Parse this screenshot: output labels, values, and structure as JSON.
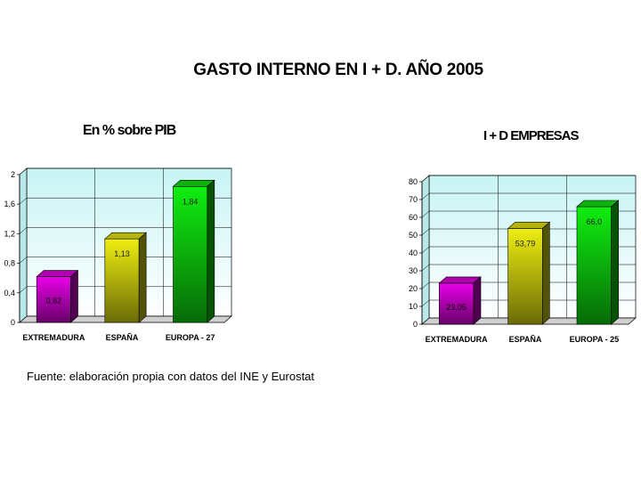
{
  "page": {
    "title": "GASTO INTERNO EN I + D. AÑO 2005",
    "source": "Fuente: elaboración propia con datos del INE y Eurostat"
  },
  "chart_data": [
    {
      "type": "bar",
      "title": "En % sobre PIB",
      "categories": [
        "EXTREMADURA",
        "ESPAÑA",
        "EUROPA - 27"
      ],
      "values": [
        0.62,
        1.13,
        1.84
      ],
      "value_labels": [
        "0,62",
        "1,13",
        "1,84"
      ],
      "ylim": [
        0,
        2
      ],
      "ticks": [
        0,
        0.4,
        0.8,
        1.2,
        1.6,
        2
      ],
      "tick_labels": [
        "0",
        "0,4",
        "0,8",
        "1,2",
        "1,6",
        "2"
      ],
      "grid": true,
      "colors": [
        "#e800e8",
        "#eeee10",
        "#10ee10"
      ]
    },
    {
      "type": "bar",
      "title": "I + D EMPRESAS",
      "categories": [
        "EXTREMADURA",
        "ESPAÑA",
        "EUROPA - 25"
      ],
      "values": [
        23.05,
        53.79,
        66.0
      ],
      "value_labels": [
        "23,05",
        "53,79",
        "66,0"
      ],
      "ylim": [
        0,
        80
      ],
      "ticks": [
        0,
        10,
        20,
        30,
        40,
        50,
        60,
        70,
        80
      ],
      "tick_labels": [
        "0",
        "10",
        "20",
        "30",
        "40",
        "50",
        "60",
        "70",
        "80"
      ],
      "grid": true,
      "colors": [
        "#e800e8",
        "#eeee10",
        "#10ee10"
      ]
    }
  ]
}
